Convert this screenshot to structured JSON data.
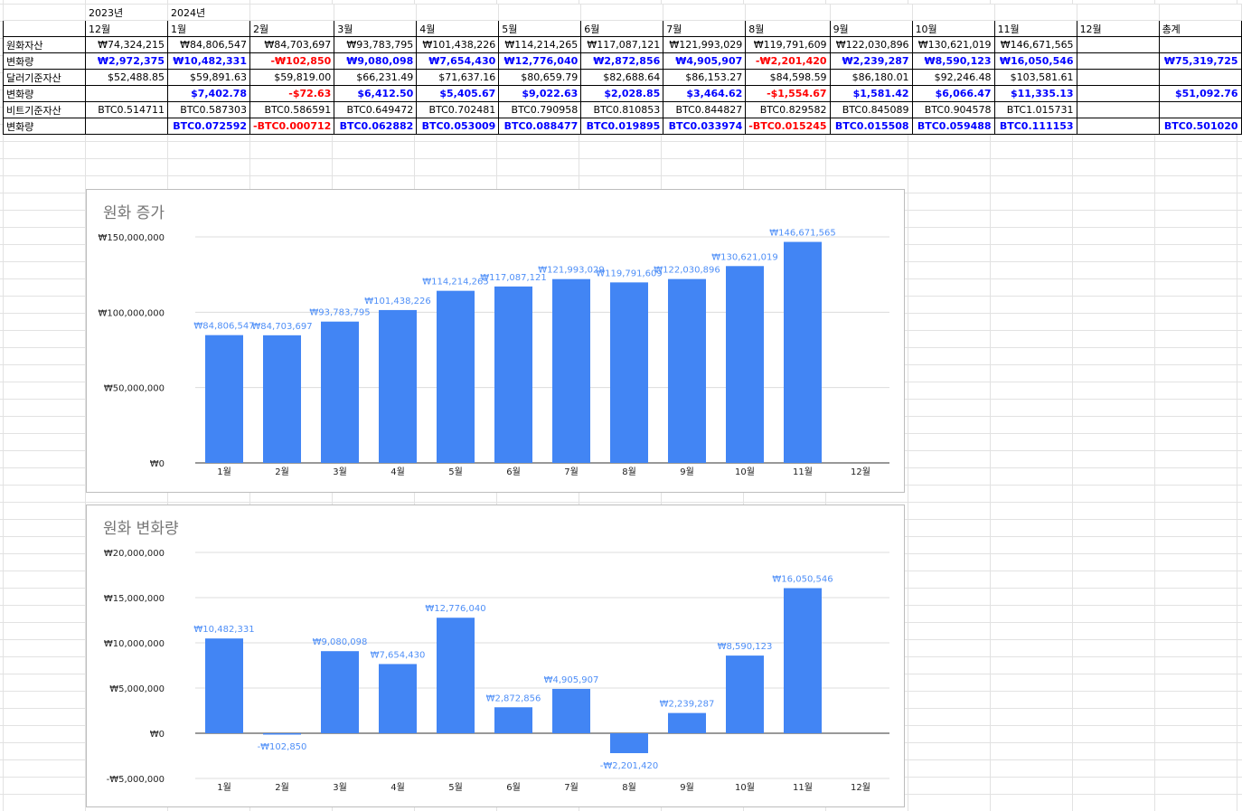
{
  "table": {
    "year_labels": [
      "2023년",
      "2024년"
    ],
    "header": [
      "12월",
      "1월",
      "2월",
      "3월",
      "4월",
      "5월",
      "6월",
      "7월",
      "8월",
      "9월",
      "10월",
      "11월",
      "12월",
      "총계"
    ],
    "rows": [
      {
        "label": "원화자산",
        "style": "plain",
        "cells": [
          "₩74,324,215",
          "₩84,806,547",
          "₩84,703,697",
          "₩93,783,795",
          "₩101,438,226",
          "₩114,214,265",
          "₩117,087,121",
          "₩121,993,029",
          "₩119,791,609",
          "₩122,030,896",
          "₩130,621,019",
          "₩146,671,565",
          "",
          ""
        ]
      },
      {
        "label": "변화량",
        "style": "delta",
        "cells": [
          "₩2,972,375",
          "₩10,482,331",
          "-₩102,850",
          "₩9,080,098",
          "₩7,654,430",
          "₩12,776,040",
          "₩2,872,856",
          "₩4,905,907",
          "-₩2,201,420",
          "₩2,239,287",
          "₩8,590,123",
          "₩16,050,546",
          "",
          "₩75,319,725"
        ]
      },
      {
        "label": "달러기준자산",
        "style": "plain",
        "cells": [
          "$52,488.85",
          "$59,891.63",
          "$59,819.00",
          "$66,231.49",
          "$71,637.16",
          "$80,659.79",
          "$82,688.64",
          "$86,153.27",
          "$84,598.59",
          "$86,180.01",
          "$92,246.48",
          "$103,581.61",
          "",
          ""
        ]
      },
      {
        "label": "변화량",
        "style": "delta",
        "cells": [
          "",
          "$7,402.78",
          "-$72.63",
          "$6,412.50",
          "$5,405.67",
          "$9,022.63",
          "$2,028.85",
          "$3,464.62",
          "-$1,554.67",
          "$1,581.42",
          "$6,066.47",
          "$11,335.13",
          "",
          "$51,092.76"
        ]
      },
      {
        "label": "비트기준자산",
        "style": "plain",
        "cells": [
          "BTC0.514711",
          "BTC0.587303",
          "BTC0.586591",
          "BTC0.649472",
          "BTC0.702481",
          "BTC0.790958",
          "BTC0.810853",
          "BTC0.844827",
          "BTC0.829582",
          "BTC0.845089",
          "BTC0.904578",
          "BTC1.015731",
          "",
          ""
        ]
      },
      {
        "label": "변화량",
        "style": "delta",
        "cells": [
          "",
          "BTC0.072592",
          "-BTC0.000712",
          "BTC0.062882",
          "BTC0.053009",
          "BTC0.088477",
          "BTC0.019895",
          "BTC0.033974",
          "-BTC0.015245",
          "BTC0.015508",
          "BTC0.059488",
          "BTC0.111153",
          "",
          "BTC0.501020"
        ]
      }
    ]
  },
  "charts": {
    "bar_color": "#4285f4",
    "label_color": "#4f8ff7"
  },
  "chart_data": [
    {
      "type": "bar",
      "title": "원화 증가",
      "categories": [
        "1월",
        "2월",
        "3월",
        "4월",
        "5월",
        "6월",
        "7월",
        "8월",
        "9월",
        "10월",
        "11월",
        "12월"
      ],
      "values": [
        84806547,
        84703697,
        93783795,
        101438226,
        114214265,
        117087121,
        121993029,
        119791609,
        122030896,
        130621019,
        146671565,
        null
      ],
      "labels": [
        "₩84,806,547",
        "₩84,703,697",
        "₩93,783,795",
        "₩101,438,226",
        "₩114,214,265",
        "₩117,087,121",
        "₩121,993,029",
        "₩119,791,609",
        "₩122,030,896",
        "₩130,621,019",
        "₩146,671,565",
        ""
      ],
      "yticks": [
        0,
        50000000,
        100000000,
        150000000
      ],
      "ytick_labels": [
        "₩0",
        "₩50,000,000",
        "₩100,000,000",
        "₩150,000,000"
      ],
      "ylim": [
        0,
        150000000
      ],
      "grid": true
    },
    {
      "type": "bar",
      "title": "원화 변화량",
      "categories": [
        "1월",
        "2월",
        "3월",
        "4월",
        "5월",
        "6월",
        "7월",
        "8월",
        "9월",
        "10월",
        "11월",
        "12월"
      ],
      "values": [
        10482331,
        -102850,
        9080098,
        7654430,
        12776040,
        2872856,
        4905907,
        -2201420,
        2239287,
        8590123,
        16050546,
        null
      ],
      "labels": [
        "₩10,482,331",
        "-₩102,850",
        "₩9,080,098",
        "₩7,654,430",
        "₩12,776,040",
        "₩2,872,856",
        "₩4,905,907",
        "-₩2,201,420",
        "₩2,239,287",
        "₩8,590,123",
        "₩16,050,546",
        ""
      ],
      "yticks": [
        -5000000,
        0,
        5000000,
        10000000,
        15000000,
        20000000
      ],
      "ytick_labels": [
        "-₩5,000,000",
        "₩0",
        "₩5,000,000",
        "₩10,000,000",
        "₩15,000,000",
        "₩20,000,000"
      ],
      "ylim": [
        -5000000,
        20000000
      ],
      "grid": true
    }
  ]
}
